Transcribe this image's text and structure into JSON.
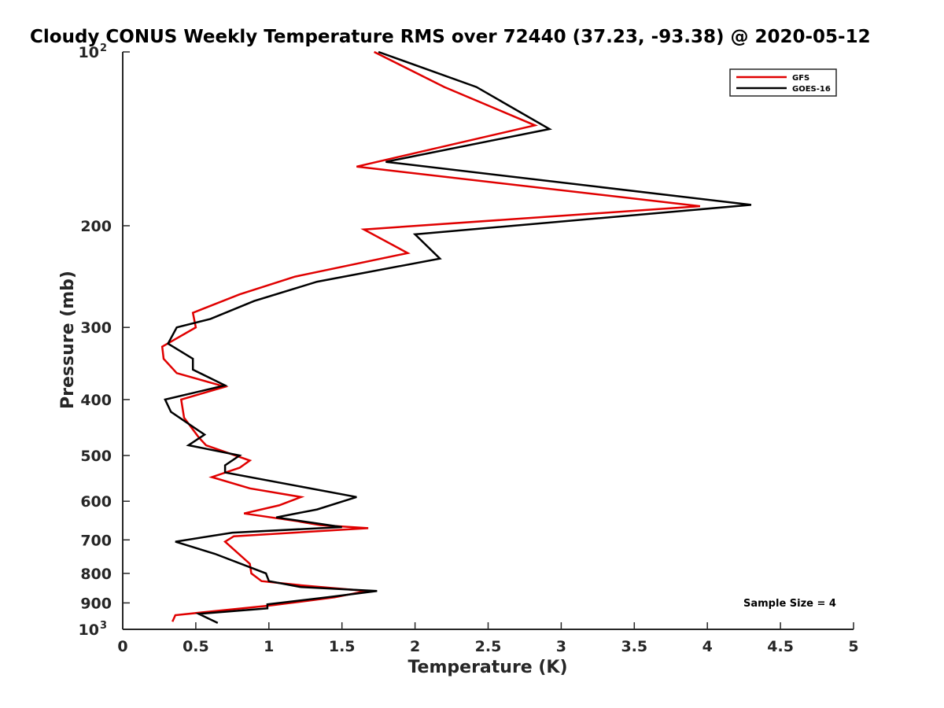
{
  "chart_data": {
    "type": "line",
    "title": "Cloudy CONUS Weekly Temperature RMS over 72440 (37.23, -93.38) @ 2020-05-12",
    "xlabel": "Temperature (K)",
    "ylabel": "Pressure (mb)",
    "xlim": [
      0,
      5
    ],
    "ylim": [
      100,
      1000
    ],
    "y_scale": "log",
    "y_reversed": true,
    "x_ticks": [
      "0",
      "0.5",
      "1",
      "1.5",
      "2",
      "2.5",
      "3",
      "3.5",
      "4",
      "4.5",
      "5"
    ],
    "y_ticks": [
      {
        "value": 100,
        "base": "10",
        "exp": "2"
      },
      {
        "value": 200,
        "label": "200"
      },
      {
        "value": 300,
        "label": "300"
      },
      {
        "value": 400,
        "label": "400"
      },
      {
        "value": 500,
        "label": "500"
      },
      {
        "value": 600,
        "label": "600"
      },
      {
        "value": 700,
        "label": "700"
      },
      {
        "value": 800,
        "label": "800"
      },
      {
        "value": 900,
        "label": "900"
      },
      {
        "value": 1000,
        "base": "10",
        "exp": "3"
      }
    ],
    "legend_position": "top-right",
    "annotation": "Sample Size = 4",
    "series": [
      {
        "name": "GFS",
        "color": "#e00000",
        "points": [
          [
            1.72,
            100
          ],
          [
            2.2,
            115
          ],
          [
            2.82,
            134
          ],
          [
            1.6,
            158
          ],
          [
            3.95,
            185
          ],
          [
            1.65,
            203
          ],
          [
            1.95,
            223
          ],
          [
            1.18,
            245
          ],
          [
            0.8,
            263
          ],
          [
            0.48,
            283
          ],
          [
            0.5,
            300
          ],
          [
            0.27,
            324
          ],
          [
            0.28,
            340
          ],
          [
            0.37,
            360
          ],
          [
            0.7,
            380
          ],
          [
            0.4,
            400
          ],
          [
            0.42,
            430
          ],
          [
            0.52,
            465
          ],
          [
            0.57,
            480
          ],
          [
            0.87,
            510
          ],
          [
            0.8,
            525
          ],
          [
            0.61,
            545
          ],
          [
            0.87,
            570
          ],
          [
            1.22,
            590
          ],
          [
            1.07,
            610
          ],
          [
            0.83,
            630
          ],
          [
            1.2,
            650
          ],
          [
            1.35,
            660
          ],
          [
            1.68,
            668
          ],
          [
            0.76,
            690
          ],
          [
            0.7,
            705
          ],
          [
            0.87,
            770
          ],
          [
            0.88,
            800
          ],
          [
            0.95,
            825
          ],
          [
            1.24,
            840
          ],
          [
            1.67,
            858
          ],
          [
            1.45,
            880
          ],
          [
            1.0,
            910
          ],
          [
            0.72,
            925
          ],
          [
            0.36,
            945
          ],
          [
            0.34,
            970
          ]
        ]
      },
      {
        "name": "GOES-16",
        "color": "#000000",
        "points": [
          [
            1.75,
            100
          ],
          [
            2.42,
            115
          ],
          [
            2.92,
            136
          ],
          [
            1.8,
            155
          ],
          [
            4.3,
            184
          ],
          [
            2.0,
            207
          ],
          [
            2.17,
            228
          ],
          [
            1.33,
            250
          ],
          [
            0.9,
            270
          ],
          [
            0.6,
            290
          ],
          [
            0.37,
            300
          ],
          [
            0.31,
            320
          ],
          [
            0.48,
            340
          ],
          [
            0.48,
            355
          ],
          [
            0.7,
            378
          ],
          [
            0.29,
            400
          ],
          [
            0.33,
            420
          ],
          [
            0.56,
            460
          ],
          [
            0.45,
            480
          ],
          [
            0.8,
            500
          ],
          [
            0.7,
            520
          ],
          [
            0.7,
            535
          ],
          [
            1.6,
            590
          ],
          [
            1.33,
            620
          ],
          [
            1.05,
            640
          ],
          [
            1.5,
            665
          ],
          [
            0.75,
            680
          ],
          [
            0.36,
            705
          ],
          [
            0.63,
            740
          ],
          [
            0.98,
            800
          ],
          [
            1.0,
            825
          ],
          [
            1.22,
            845
          ],
          [
            1.74,
            858
          ],
          [
            1.4,
            880
          ],
          [
            0.99,
            905
          ],
          [
            0.99,
            920
          ],
          [
            0.52,
            940
          ],
          [
            0.65,
            975
          ]
        ]
      }
    ]
  }
}
